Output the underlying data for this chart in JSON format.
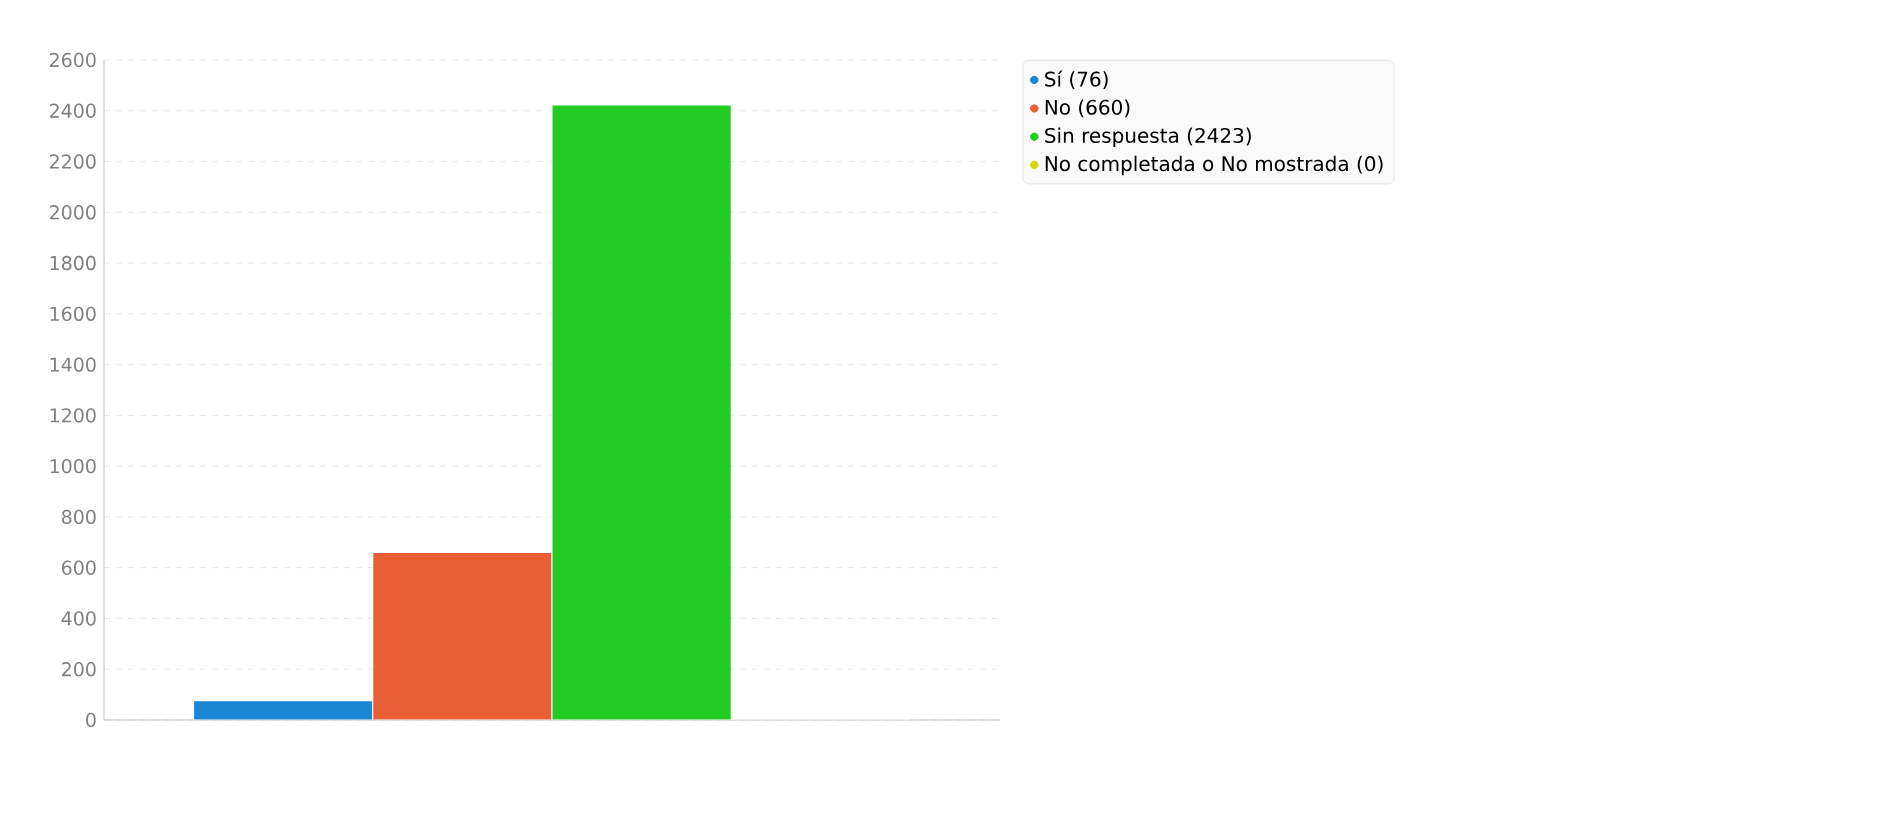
{
  "chart_data": {
    "type": "bar",
    "categories": [
      null
    ],
    "series": [
      {
        "name": "Sí (76)",
        "color": "#1b87d4",
        "values": [
          76
        ]
      },
      {
        "name": "No (660)",
        "color": "#e95f35",
        "values": [
          660
        ]
      },
      {
        "name": "Sin respuesta (2423)",
        "color": "#22cc22",
        "values": [
          2423
        ]
      },
      {
        "name": "No completada o No mostrada (0)",
        "color": "#d6d600",
        "values": [
          0
        ]
      }
    ],
    "ylim": [
      0,
      2600
    ],
    "yticks": [
      0,
      200,
      400,
      600,
      800,
      1000,
      1200,
      1400,
      1600,
      1800,
      2000,
      2200,
      2400,
      2600
    ],
    "grid": "y",
    "legend": "top right"
  }
}
